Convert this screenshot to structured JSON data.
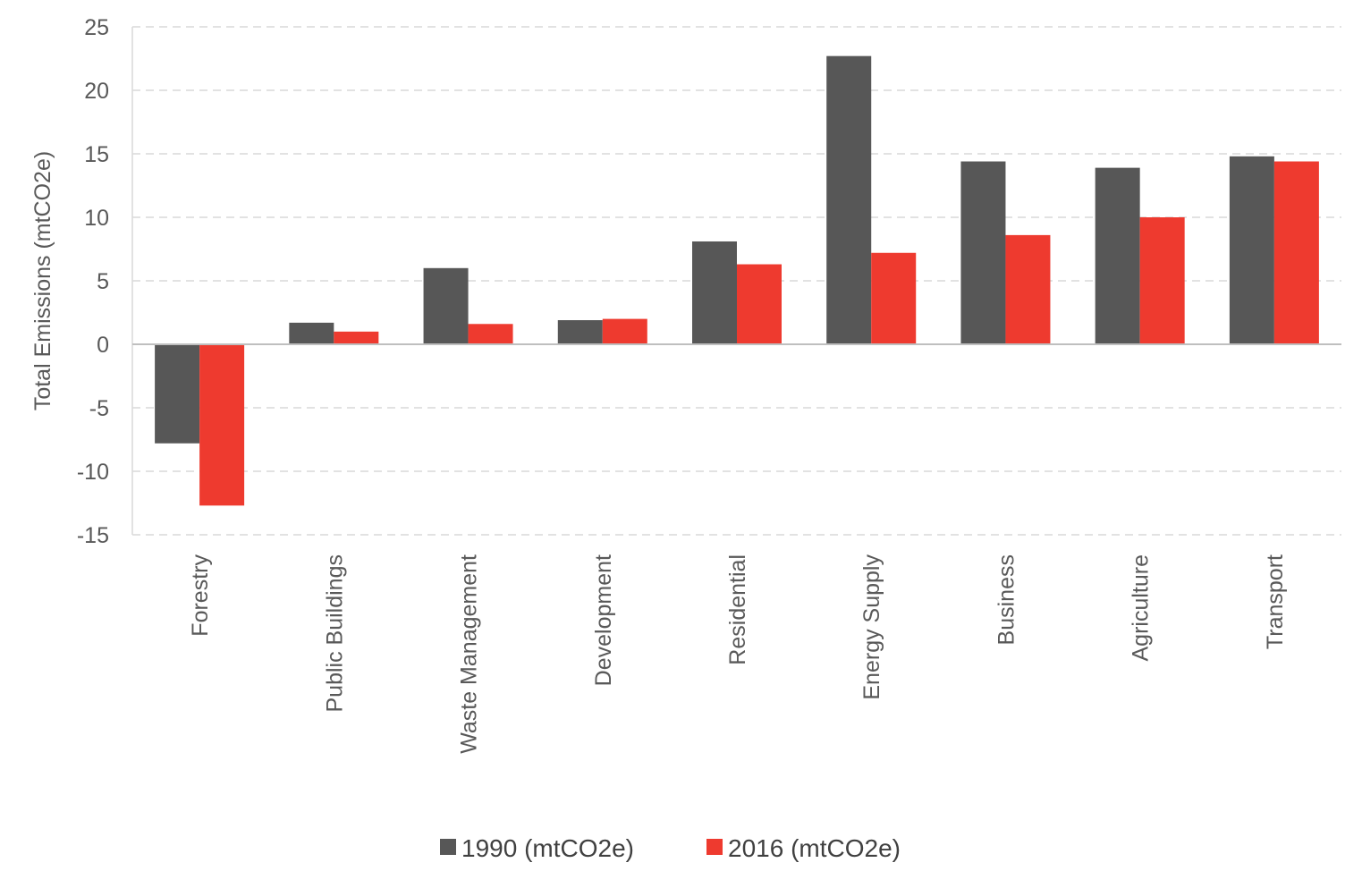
{
  "chart_data": {
    "type": "bar",
    "title": "",
    "xlabel": "",
    "ylabel": "Total Emissions (mtCO2e)",
    "ylim": [
      -15,
      25
    ],
    "yticks": [
      25,
      20,
      15,
      10,
      5,
      0,
      -5,
      -10,
      -15
    ],
    "categories": [
      "Forestry",
      "Public Buildings",
      "Waste Management",
      "Development",
      "Residential",
      "Energy Supply",
      "Business",
      "Agriculture",
      "Transport"
    ],
    "series": [
      {
        "name": "1990 (mtCO2e)",
        "color": "#575757",
        "values": [
          -7.8,
          1.7,
          6.0,
          1.9,
          8.1,
          22.7,
          14.4,
          13.9,
          14.8
        ]
      },
      {
        "name": "2016 (mtCO2e)",
        "color": "#ee3a2f",
        "values": [
          -12.7,
          1.0,
          1.6,
          2.0,
          6.3,
          7.2,
          8.6,
          10.0,
          14.4
        ]
      }
    ],
    "grid": true,
    "legend": "bottom"
  }
}
